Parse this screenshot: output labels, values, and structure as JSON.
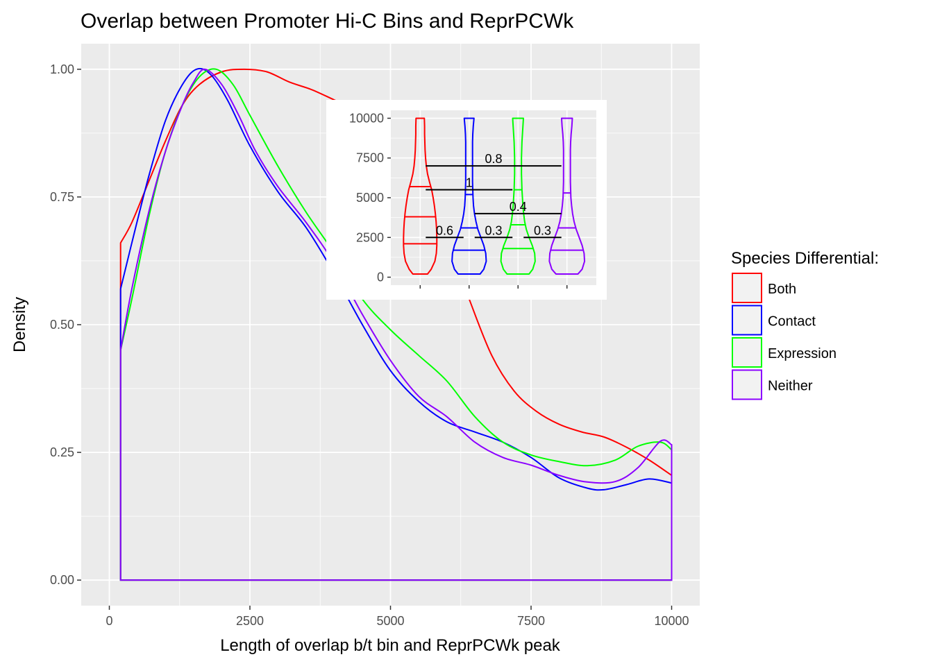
{
  "chart_data": {
    "type": "line",
    "title": "Overlap between Promoter Hi-C Bins and ReprPCWk",
    "xlabel": "Length of overlap b/t bin and ReprPCWk peak",
    "ylabel": "Density",
    "xlim": [
      -500,
      10500
    ],
    "ylim": [
      -0.05,
      1.05
    ],
    "x_ticks": [
      0,
      2500,
      5000,
      7500,
      10000
    ],
    "x_tick_labels": [
      "0",
      "2500",
      "5000",
      "7500",
      "10000"
    ],
    "y_ticks": [
      0,
      0.25,
      0.5,
      0.75,
      1
    ],
    "y_tick_labels": [
      "0.00",
      "0.25",
      "0.50",
      "0.75",
      "1.00"
    ],
    "grid": true,
    "legend": {
      "title": "Species Differential:",
      "position": "right",
      "entries": [
        "Both",
        "Contact",
        "Expression",
        "Neither"
      ]
    },
    "x_range": [
      200,
      10000
    ],
    "series": [
      {
        "name": "Both",
        "color": "#ff0000",
        "x": [
          200,
          400,
          700,
          1000,
          1300,
          1600,
          2000,
          2400,
          2800,
          3200,
          3600,
          4000,
          4400,
          4800,
          5200,
          5600,
          6000,
          6400,
          6800,
          7200,
          7600,
          8000,
          8400,
          8800,
          9200,
          9600,
          10000
        ],
        "y": [
          0.66,
          0.7,
          0.78,
          0.86,
          0.93,
          0.97,
          0.995,
          1.0,
          0.995,
          0.975,
          0.96,
          0.94,
          0.92,
          0.89,
          0.85,
          0.78,
          0.67,
          0.55,
          0.44,
          0.37,
          0.33,
          0.305,
          0.29,
          0.28,
          0.26,
          0.235,
          0.205
        ]
      },
      {
        "name": "Contact",
        "color": "#0000ff",
        "x": [
          200,
          400,
          700,
          1000,
          1300,
          1550,
          1800,
          2100,
          2500,
          3000,
          3500,
          4000,
          4500,
          5000,
          5500,
          6000,
          6500,
          7000,
          7500,
          8000,
          8500,
          8800,
          9200,
          9600,
          10000
        ],
        "y": [
          0.57,
          0.66,
          0.79,
          0.9,
          0.97,
          1.0,
          0.99,
          0.94,
          0.85,
          0.76,
          0.69,
          0.6,
          0.5,
          0.41,
          0.35,
          0.31,
          0.29,
          0.27,
          0.24,
          0.2,
          0.18,
          0.177,
          0.187,
          0.198,
          0.19
        ]
      },
      {
        "name": "Expression",
        "color": "#00ff00",
        "x": [
          200,
          400,
          700,
          1000,
          1300,
          1600,
          1900,
          2200,
          2500,
          3000,
          3500,
          4000,
          4500,
          5000,
          5500,
          6000,
          6500,
          7000,
          7500,
          8000,
          8500,
          9000,
          9400,
          9800,
          10000
        ],
        "y": [
          0.45,
          0.55,
          0.71,
          0.84,
          0.93,
          0.985,
          1.0,
          0.97,
          0.91,
          0.81,
          0.72,
          0.64,
          0.55,
          0.49,
          0.44,
          0.39,
          0.32,
          0.27,
          0.245,
          0.232,
          0.224,
          0.235,
          0.262,
          0.27,
          0.255
        ]
      },
      {
        "name": "Neither",
        "color": "#8b00ff",
        "x": [
          200,
          400,
          700,
          1000,
          1300,
          1500,
          1700,
          2000,
          2300,
          2600,
          3000,
          3500,
          4000,
          4500,
          5000,
          5500,
          6000,
          6500,
          7000,
          7500,
          8000,
          8500,
          9000,
          9400,
          9800,
          10000
        ],
        "y": [
          0.45,
          0.57,
          0.72,
          0.84,
          0.93,
          0.975,
          1.0,
          0.97,
          0.91,
          0.84,
          0.77,
          0.7,
          0.62,
          0.52,
          0.43,
          0.36,
          0.32,
          0.27,
          0.24,
          0.225,
          0.205,
          0.192,
          0.193,
          0.22,
          0.272,
          0.265
        ]
      }
    ],
    "inset": {
      "type": "violin",
      "ylim": [
        -500,
        10500
      ],
      "y_ticks": [
        0,
        2500,
        5000,
        7500,
        10000
      ],
      "y_tick_labels": [
        "0",
        "2500",
        "5000",
        "7500",
        "10000"
      ],
      "violins": [
        {
          "name": "Both",
          "color": "#ff0000",
          "profile_y": [
            200,
            500,
            1000,
            1500,
            2000,
            2500,
            3000,
            3500,
            4000,
            4500,
            5000,
            5500,
            6000,
            6500,
            7000,
            7500,
            8000,
            8500,
            9000,
            9500,
            10000
          ],
          "profile_w": [
            0.3,
            0.45,
            0.6,
            0.66,
            0.68,
            0.68,
            0.67,
            0.65,
            0.62,
            0.58,
            0.53,
            0.47,
            0.38,
            0.3,
            0.25,
            0.22,
            0.2,
            0.19,
            0.18,
            0.18,
            0.17
          ],
          "quantiles": [
            2100,
            3800,
            5700
          ]
        },
        {
          "name": "Contact",
          "color": "#0000ff",
          "profile_y": [
            200,
            500,
            1000,
            1500,
            2000,
            2500,
            3000,
            3500,
            4000,
            4500,
            5000,
            5500,
            6000,
            6500,
            7000,
            7500,
            8000,
            8500,
            9000,
            9500,
            10000
          ],
          "profile_w": [
            0.45,
            0.6,
            0.7,
            0.68,
            0.6,
            0.48,
            0.36,
            0.28,
            0.22,
            0.18,
            0.16,
            0.15,
            0.14,
            0.14,
            0.14,
            0.14,
            0.14,
            0.14,
            0.15,
            0.17,
            0.2
          ],
          "quantiles": [
            1700,
            3100,
            5200
          ]
        },
        {
          "name": "Expression",
          "color": "#00ff00",
          "profile_y": [
            200,
            500,
            1000,
            1500,
            2000,
            2500,
            3000,
            3500,
            4000,
            4500,
            5000,
            5500,
            6000,
            6500,
            7000,
            7500,
            8000,
            8500,
            9000,
            9500,
            10000
          ],
          "profile_w": [
            0.45,
            0.6,
            0.7,
            0.68,
            0.58,
            0.45,
            0.34,
            0.27,
            0.23,
            0.2,
            0.18,
            0.16,
            0.15,
            0.14,
            0.14,
            0.14,
            0.15,
            0.16,
            0.18,
            0.2,
            0.22
          ],
          "quantiles": [
            1800,
            3300,
            5500
          ]
        },
        {
          "name": "Neither",
          "color": "#8b00ff",
          "profile_y": [
            200,
            500,
            1000,
            1500,
            2000,
            2500,
            3000,
            3500,
            4000,
            4500,
            5000,
            5500,
            6000,
            6500,
            7000,
            7500,
            8000,
            8500,
            9000,
            9500,
            10000
          ],
          "profile_w": [
            0.45,
            0.62,
            0.72,
            0.7,
            0.62,
            0.5,
            0.38,
            0.29,
            0.23,
            0.19,
            0.16,
            0.15,
            0.14,
            0.14,
            0.14,
            0.14,
            0.14,
            0.15,
            0.17,
            0.2,
            0.22
          ],
          "quantiles": [
            1700,
            3100,
            5300
          ]
        }
      ],
      "comparisons": [
        {
          "from": 1,
          "to": 2,
          "y": 2500,
          "label": "0.6"
        },
        {
          "from": 2,
          "to": 3,
          "y": 2500,
          "label": "0.3"
        },
        {
          "from": 3,
          "to": 4,
          "y": 2500,
          "label": "0.3"
        },
        {
          "from": 2,
          "to": 4,
          "y": 4000,
          "label": "0.4"
        },
        {
          "from": 1,
          "to": 3,
          "y": 5500,
          "label": "1"
        },
        {
          "from": 1,
          "to": 4,
          "y": 7000,
          "label": "0.8"
        }
      ]
    }
  }
}
